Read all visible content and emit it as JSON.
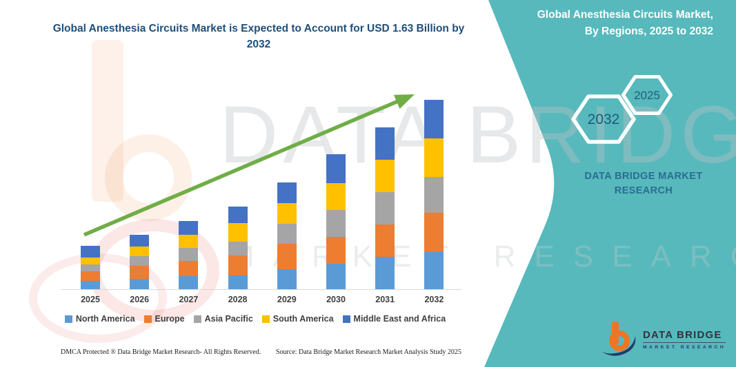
{
  "header": {
    "title": "Global Anesthesia Circuits Market is Expected to Account for USD 1.63 Billion by 2032",
    "panel_title_line1": "Global Anesthesia Circuits Market,",
    "panel_title_line2": "By Regions, 2025 to 2032"
  },
  "panel": {
    "teal_color": "#57B9BC",
    "hexagons": [
      {
        "label": "2032"
      },
      {
        "label": "2025"
      }
    ],
    "brand_line1": "DATA BRIDGE MARKET",
    "brand_line2": "RESEARCH"
  },
  "logo": {
    "name": "DATA BRIDGE",
    "subtitle": "MARKET RESEARCH",
    "b_color": "#EE7623",
    "swoosh_color": "#1E3C6E"
  },
  "watermark": {
    "line1": "DATA BRIDGE",
    "line2": "MARKET RESEARCH"
  },
  "footer": {
    "left": "DMCA Protected ® Data Bridge Market Research-  All Rights Reserved.",
    "source": "Source: Data Bridge Market Research  Market Analysis Study 2025"
  },
  "chart_data": {
    "type": "bar",
    "stacked": true,
    "title": "Global Anesthesia Circuits Market is Expected to Account for USD 1.63 Billion by 2032",
    "annotation": "Growth trend arrow rising from 2025 to 2032; 2032 total labeled as USD 1.63 Billion",
    "unit": "USD Billion (segment values estimated from bar heights; only the 2032 total of 1.63 is labeled)",
    "categories": [
      "2025",
      "2026",
      "2027",
      "2028",
      "2029",
      "2030",
      "2031",
      "2032"
    ],
    "series": [
      {
        "name": "North America",
        "color": "#5B9BD5",
        "values": [
          0.07,
          0.09,
          0.11,
          0.12,
          0.17,
          0.22,
          0.28,
          0.32
        ]
      },
      {
        "name": "Europe",
        "color": "#ED7D31",
        "values": [
          0.08,
          0.11,
          0.13,
          0.17,
          0.22,
          0.23,
          0.28,
          0.34
        ]
      },
      {
        "name": "Asia Pacific",
        "color": "#A5A5A5",
        "values": [
          0.06,
          0.08,
          0.11,
          0.12,
          0.17,
          0.23,
          0.28,
          0.31
        ]
      },
      {
        "name": "South America",
        "color": "#FFC000",
        "values": [
          0.06,
          0.08,
          0.11,
          0.16,
          0.18,
          0.23,
          0.28,
          0.33
        ]
      },
      {
        "name": "Middle East and Africa",
        "color": "#4472C4",
        "values": [
          0.1,
          0.1,
          0.12,
          0.14,
          0.18,
          0.25,
          0.28,
          0.33
        ]
      }
    ],
    "totals": [
      0.37,
      0.46,
      0.58,
      0.71,
      0.92,
      1.16,
      1.4,
      1.63
    ],
    "trend_arrow_color": "#70AD47",
    "legend_position": "bottom",
    "grid": false,
    "y_axis_visible": false,
    "x_axis_color": "#D9D9D9"
  }
}
